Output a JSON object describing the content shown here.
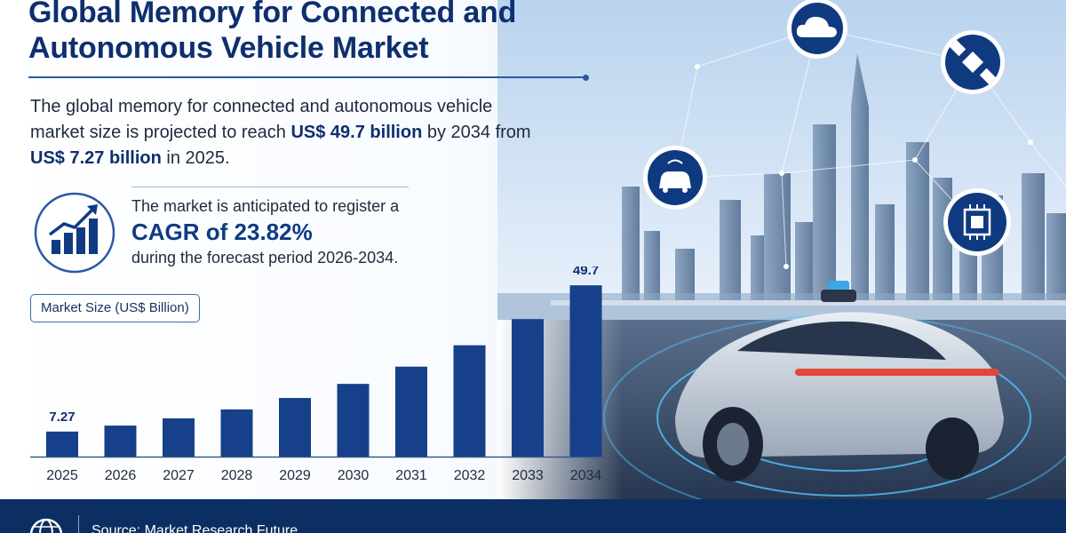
{
  "header": {
    "title": "Global Memory for Connected and Autonomous Vehicle Market"
  },
  "intro": {
    "part1": "The global memory for connected and autonomous vehicle market size is projected to reach ",
    "value_2034": "US$ 49.7 billion",
    "part2": " by 2034 from ",
    "value_2025": "US$ 7.27 billion",
    "part3": " in 2025."
  },
  "cagr": {
    "line1": "The market is anticipated to register a",
    "value": "CAGR of 23.82%",
    "line3": "during the forecast period 2026-2034."
  },
  "chart_data": {
    "type": "bar",
    "title": "",
    "series_label": "Market Size (US$ Billion)",
    "categories": [
      "2025",
      "2026",
      "2027",
      "2028",
      "2029",
      "2030",
      "2031",
      "2032",
      "2033",
      "2034"
    ],
    "values": [
      7.27,
      9.0,
      11.1,
      13.7,
      17.0,
      21.1,
      26.1,
      32.3,
      39.9,
      49.7
    ],
    "data_labels": {
      "2025": "7.27",
      "2034": "49.7"
    },
    "ylim": [
      0,
      50
    ],
    "bar_color": "#17408a",
    "grid": false,
    "legend": "none"
  },
  "illustration": {
    "icons": [
      "cloud-icon",
      "satellite-icon",
      "connected-car-icon",
      "chip-icon"
    ]
  },
  "footer": {
    "source": "Source: Market Research Future",
    "icon": "globe-icon"
  },
  "colors": {
    "primary": "#0e2f6e",
    "accent": "#2a58a6",
    "bar": "#17408a",
    "footer_bg": "#0b2f62"
  }
}
